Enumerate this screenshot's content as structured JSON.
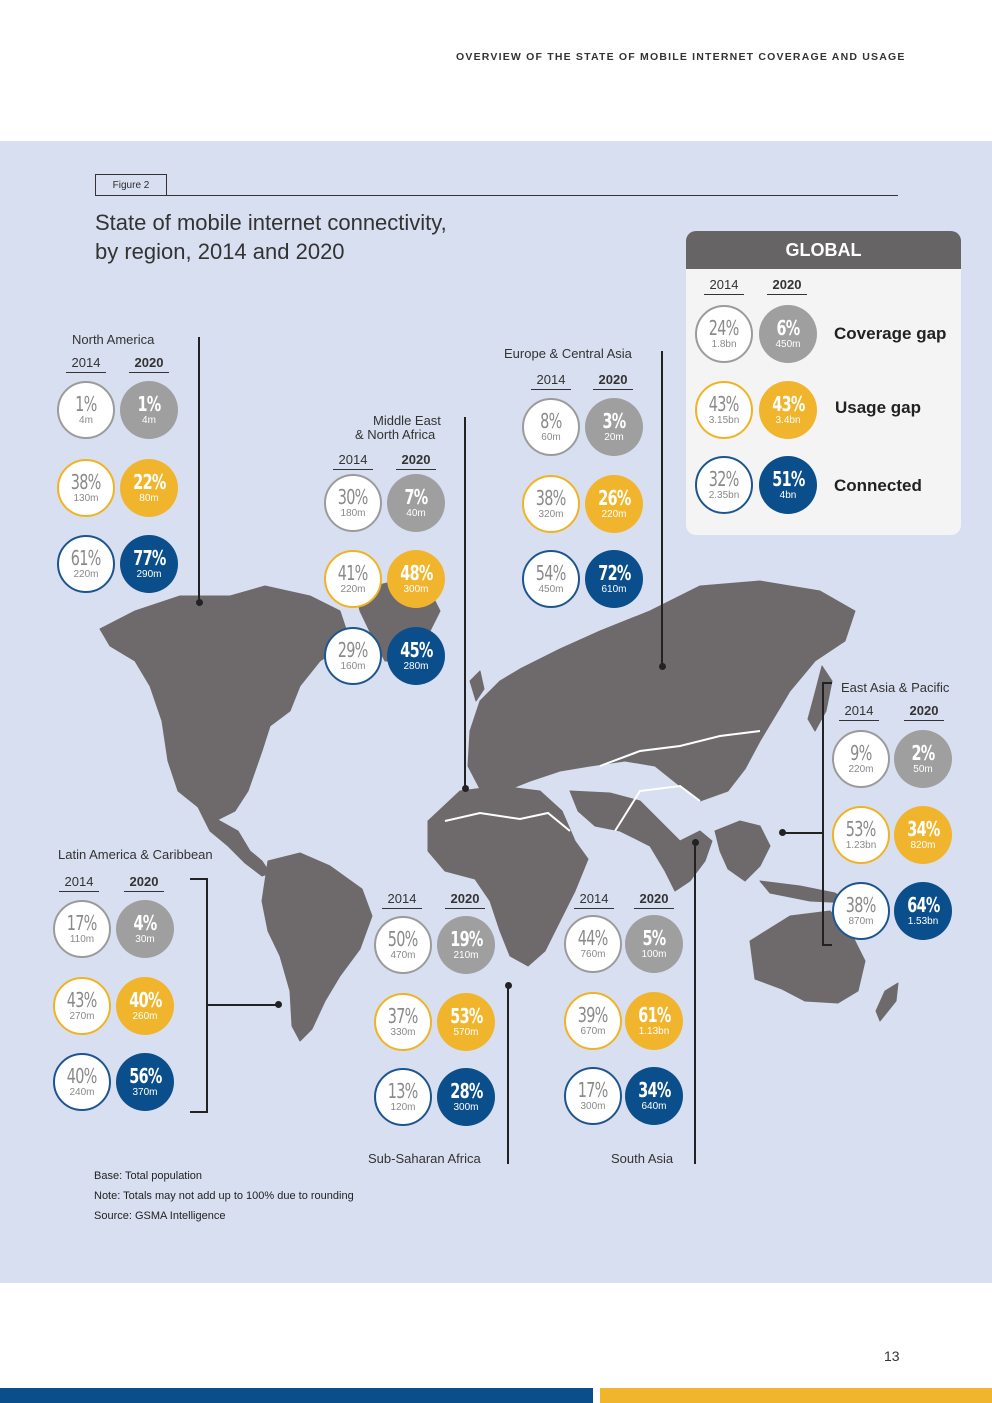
{
  "header": {
    "title": "OVERVIEW OF THE STATE OF MOBILE INTERNET COVERAGE AND USAGE"
  },
  "figure": {
    "label": "Figure 2",
    "title_line1": "State of mobile internet connectivity,",
    "title_line2": "by region, 2014 and 2020"
  },
  "global": {
    "title": "GLOBAL",
    "year_a": "2014",
    "year_b": "2020",
    "labels": {
      "coverage": "Coverage gap",
      "usage": "Usage gap",
      "connected": "Connected"
    },
    "coverage": {
      "y2014": {
        "pct": "24%",
        "val": "1.8bn"
      },
      "y2020": {
        "pct": "6%",
        "val": "450m"
      }
    },
    "usage": {
      "y2014": {
        "pct": "43%",
        "val": "3.15bn"
      },
      "y2020": {
        "pct": "43%",
        "val": "3.4bn"
      }
    },
    "connected": {
      "y2014": {
        "pct": "32%",
        "val": "2.35bn"
      },
      "y2020": {
        "pct": "51%",
        "val": "4bn"
      }
    }
  },
  "regions": {
    "north_america": {
      "name": "North America",
      "year_a": "2014",
      "year_b": "2020",
      "coverage": {
        "y2014": {
          "pct": "1%",
          "val": "4m"
        },
        "y2020": {
          "pct": "1%",
          "val": "4m"
        }
      },
      "usage": {
        "y2014": {
          "pct": "38%",
          "val": "130m"
        },
        "y2020": {
          "pct": "22%",
          "val": "80m"
        }
      },
      "connected": {
        "y2014": {
          "pct": "61%",
          "val": "220m"
        },
        "y2020": {
          "pct": "77%",
          "val": "290m"
        }
      }
    },
    "mena": {
      "name_line1": "Middle East",
      "name_line2": "& North Africa",
      "year_a": "2014",
      "year_b": "2020",
      "coverage": {
        "y2014": {
          "pct": "30%",
          "val": "180m"
        },
        "y2020": {
          "pct": "7%",
          "val": "40m"
        }
      },
      "usage": {
        "y2014": {
          "pct": "41%",
          "val": "220m"
        },
        "y2020": {
          "pct": "48%",
          "val": "300m"
        }
      },
      "connected": {
        "y2014": {
          "pct": "29%",
          "val": "160m"
        },
        "y2020": {
          "pct": "45%",
          "val": "280m"
        }
      }
    },
    "europe_central_asia": {
      "name": "Europe & Central Asia",
      "year_a": "2014",
      "year_b": "2020",
      "coverage": {
        "y2014": {
          "pct": "8%",
          "val": "60m"
        },
        "y2020": {
          "pct": "3%",
          "val": "20m"
        }
      },
      "usage": {
        "y2014": {
          "pct": "38%",
          "val": "320m"
        },
        "y2020": {
          "pct": "26%",
          "val": "220m"
        }
      },
      "connected": {
        "y2014": {
          "pct": "54%",
          "val": "450m"
        },
        "y2020": {
          "pct": "72%",
          "val": "610m"
        }
      }
    },
    "east_asia_pacific": {
      "name": "East Asia & Pacific",
      "year_a": "2014",
      "year_b": "2020",
      "coverage": {
        "y2014": {
          "pct": "9%",
          "val": "220m"
        },
        "y2020": {
          "pct": "2%",
          "val": "50m"
        }
      },
      "usage": {
        "y2014": {
          "pct": "53%",
          "val": "1.23bn"
        },
        "y2020": {
          "pct": "34%",
          "val": "820m"
        }
      },
      "connected": {
        "y2014": {
          "pct": "38%",
          "val": "870m"
        },
        "y2020": {
          "pct": "64%",
          "val": "1.53bn"
        }
      }
    },
    "latin_america": {
      "name": "Latin America & Caribbean",
      "year_a": "2014",
      "year_b": "2020",
      "coverage": {
        "y2014": {
          "pct": "17%",
          "val": "110m"
        },
        "y2020": {
          "pct": "4%",
          "val": "30m"
        }
      },
      "usage": {
        "y2014": {
          "pct": "43%",
          "val": "270m"
        },
        "y2020": {
          "pct": "40%",
          "val": "260m"
        }
      },
      "connected": {
        "y2014": {
          "pct": "40%",
          "val": "240m"
        },
        "y2020": {
          "pct": "56%",
          "val": "370m"
        }
      }
    },
    "sub_saharan_africa": {
      "name": "Sub-Saharan Africa",
      "year_a": "2014",
      "year_b": "2020",
      "coverage": {
        "y2014": {
          "pct": "50%",
          "val": "470m"
        },
        "y2020": {
          "pct": "19%",
          "val": "210m"
        }
      },
      "usage": {
        "y2014": {
          "pct": "37%",
          "val": "330m"
        },
        "y2020": {
          "pct": "53%",
          "val": "570m"
        }
      },
      "connected": {
        "y2014": {
          "pct": "13%",
          "val": "120m"
        },
        "y2020": {
          "pct": "28%",
          "val": "300m"
        }
      }
    },
    "south_asia": {
      "name": "South Asia",
      "year_a": "2014",
      "year_b": "2020",
      "coverage": {
        "y2014": {
          "pct": "44%",
          "val": "760m"
        },
        "y2020": {
          "pct": "5%",
          "val": "100m"
        }
      },
      "usage": {
        "y2014": {
          "pct": "39%",
          "val": "670m"
        },
        "y2020": {
          "pct": "61%",
          "val": "1.13bn"
        }
      },
      "connected": {
        "y2014": {
          "pct": "17%",
          "val": "300m"
        },
        "y2020": {
          "pct": "34%",
          "val": "640m"
        }
      }
    }
  },
  "notes": {
    "base": "Base: Total population",
    "note": "Note: Totals may not add up to 100% due to rounding",
    "source": "Source: GSMA Intelligence"
  },
  "page_number": "13",
  "colors": {
    "panel_bg": "#d8dff0",
    "map_land": "#6e6a6b",
    "coverage": "#a09fa0",
    "usage": "#f1b52d",
    "connected": "#0b4e8c",
    "global_header": "#676465"
  }
}
